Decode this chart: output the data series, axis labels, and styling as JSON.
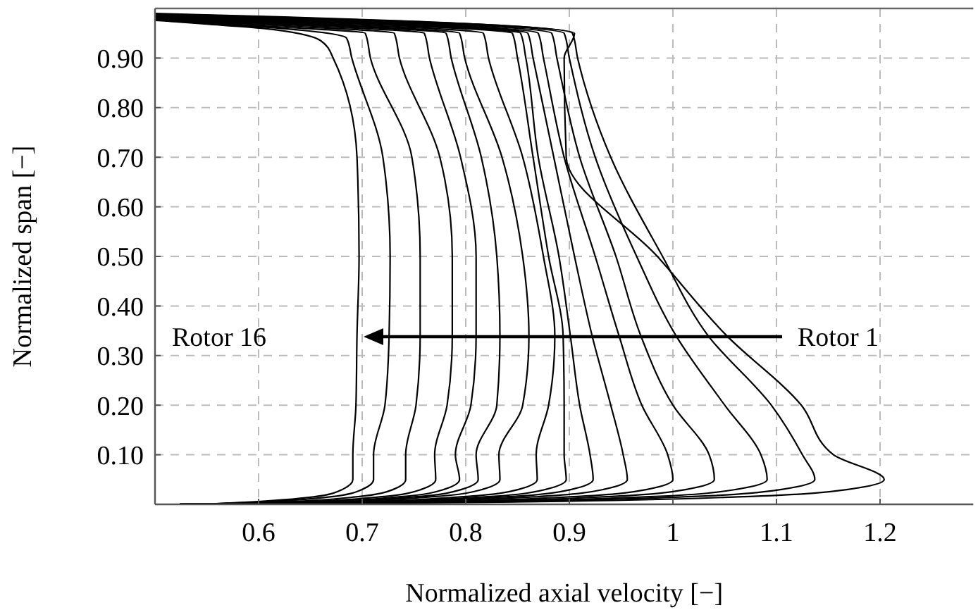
{
  "chart_data": {
    "type": "line",
    "xlabel": "Normalized axial velocity [−]",
    "ylabel": "Normalized span [−]",
    "xlim": [
      0.5,
      1.29
    ],
    "ylim": [
      0,
      1
    ],
    "xticks": [
      0.6,
      0.7,
      0.8,
      0.9,
      1,
      1.1,
      1.2
    ],
    "yticks": [
      {
        "value": 0.1,
        "label": "0.10"
      },
      {
        "value": 0.2,
        "label": "0.20"
      },
      {
        "value": 0.3,
        "label": "0.30"
      },
      {
        "value": 0.4,
        "label": "0.40"
      },
      {
        "value": 0.5,
        "label": "0.50"
      },
      {
        "value": 0.6,
        "label": "0.60"
      },
      {
        "value": 0.7,
        "label": "0.70"
      },
      {
        "value": 0.8,
        "label": "0.80"
      },
      {
        "value": 0.9,
        "label": "0.90"
      }
    ],
    "grid": true,
    "marker": "none",
    "line_style": "solid",
    "annotations": [
      "Rotor 1",
      "Rotor 16"
    ],
    "series": [
      {
        "color": "#000000",
        "x": [
          0.5,
          0.817,
          1.063,
          1.169,
          1.204,
          1.155,
          1.124,
          1.052,
          0.985,
          0.897,
          0.895,
          0.905,
          0.737,
          0.619,
          0.5
        ],
        "values": [
          0,
          0.004,
          0.015,
          0.03,
          0.05,
          0.1,
          0.2,
          0.34,
          0.5,
          0.7,
          0.9,
          0.95,
          0.975,
          0.983,
          0.99
        ]
      },
      {
        "color": "#000000",
        "x": [
          0.503,
          0.787,
          1.01,
          1.105,
          1.137,
          1.125,
          1.095,
          1.034,
          0.99,
          0.94,
          0.908,
          0.903,
          0.745,
          0.622,
          0.5
        ],
        "values": [
          0,
          0.004,
          0.015,
          0.03,
          0.05,
          0.1,
          0.2,
          0.34,
          0.5,
          0.7,
          0.9,
          0.95,
          0.974,
          0.982,
          0.989
        ]
      },
      {
        "color": "#000000",
        "x": [
          0.506,
          0.766,
          0.973,
          1.061,
          1.091,
          1.085,
          1.05,
          1.003,
          0.965,
          0.925,
          0.9,
          0.895,
          0.74,
          0.62,
          0.5
        ],
        "values": [
          0,
          0.004,
          0.015,
          0.03,
          0.05,
          0.1,
          0.2,
          0.34,
          0.5,
          0.7,
          0.9,
          0.95,
          0.973,
          0.981,
          0.988
        ]
      },
      {
        "color": "#000000",
        "x": [
          0.509,
          0.743,
          0.932,
          1.013,
          1.04,
          1.035,
          1.0,
          0.969,
          0.945,
          0.91,
          0.888,
          0.883,
          0.733,
          0.616,
          0.5
        ],
        "values": [
          0,
          0.004,
          0.015,
          0.03,
          0.05,
          0.1,
          0.2,
          0.34,
          0.5,
          0.7,
          0.9,
          0.95,
          0.972,
          0.98,
          0.987
        ]
      },
      {
        "color": "#000000",
        "x": [
          0.512,
          0.725,
          0.9,
          0.975,
          1.0,
          0.995,
          0.97,
          0.948,
          0.925,
          0.895,
          0.875,
          0.87,
          0.725,
          0.613,
          0.5
        ],
        "values": [
          0,
          0.004,
          0.015,
          0.03,
          0.05,
          0.1,
          0.2,
          0.34,
          0.5,
          0.7,
          0.9,
          0.95,
          0.971,
          0.979,
          0.986
        ]
      },
      {
        "color": "#000000",
        "x": [
          0.515,
          0.705,
          0.865,
          0.933,
          0.956,
          0.952,
          0.94,
          0.922,
          0.905,
          0.885,
          0.865,
          0.86,
          0.719,
          0.61,
          0.5
        ],
        "values": [
          0,
          0.004,
          0.015,
          0.03,
          0.05,
          0.1,
          0.2,
          0.34,
          0.5,
          0.7,
          0.9,
          0.95,
          0.97,
          0.978,
          0.985
        ]
      },
      {
        "color": "#000000",
        "x": [
          0.518,
          0.69,
          0.838,
          0.902,
          0.923,
          0.92,
          0.91,
          0.901,
          0.89,
          0.87,
          0.858,
          0.853,
          0.715,
          0.607,
          0.5
        ],
        "values": [
          0,
          0.004,
          0.015,
          0.03,
          0.05,
          0.1,
          0.2,
          0.34,
          0.5,
          0.7,
          0.9,
          0.95,
          0.969,
          0.977,
          0.984
        ]
      },
      {
        "color": "#000000",
        "x": [
          0.521,
          0.679,
          0.818,
          0.877,
          0.897,
          0.895,
          0.895,
          0.894,
          0.88,
          0.865,
          0.85,
          0.845,
          0.71,
          0.605,
          0.5
        ],
        "values": [
          0,
          0.004,
          0.015,
          0.03,
          0.05,
          0.1,
          0.2,
          0.34,
          0.5,
          0.7,
          0.9,
          0.95,
          0.968,
          0.976,
          0.983
        ]
      },
      {
        "color": "#000000",
        "x": [
          0.524,
          0.666,
          0.795,
          0.851,
          0.869,
          0.868,
          0.88,
          0.886,
          0.875,
          0.855,
          0.822,
          0.817,
          0.693,
          0.597,
          0.5
        ],
        "values": [
          0,
          0.004,
          0.015,
          0.03,
          0.05,
          0.1,
          0.2,
          0.34,
          0.5,
          0.7,
          0.9,
          0.95,
          0.967,
          0.975,
          0.982
        ]
      },
      {
        "color": "#000000",
        "x": [
          0.527,
          0.65,
          0.766,
          0.816,
          0.833,
          0.832,
          0.855,
          0.861,
          0.855,
          0.835,
          0.799,
          0.794,
          0.679,
          0.59,
          0.5
        ],
        "values": [
          0,
          0.004,
          0.015,
          0.03,
          0.05,
          0.1,
          0.2,
          0.34,
          0.5,
          0.7,
          0.9,
          0.95,
          0.966,
          0.974,
          0.981
        ]
      },
      {
        "color": "#000000",
        "x": [
          0.53,
          0.64,
          0.75,
          0.796,
          0.812,
          0.81,
          0.83,
          0.833,
          0.83,
          0.815,
          0.786,
          0.781,
          0.672,
          0.586,
          0.5
        ],
        "values": [
          0,
          0.004,
          0.015,
          0.03,
          0.05,
          0.1,
          0.2,
          0.34,
          0.5,
          0.7,
          0.9,
          0.95,
          0.965,
          0.973,
          0.98
        ]
      },
      {
        "color": "#000000",
        "x": [
          0.533,
          0.632,
          0.735,
          0.779,
          0.794,
          0.79,
          0.805,
          0.81,
          0.81,
          0.795,
          0.765,
          0.76,
          0.659,
          0.58,
          0.5
        ],
        "values": [
          0,
          0.004,
          0.015,
          0.03,
          0.05,
          0.1,
          0.2,
          0.34,
          0.5,
          0.7,
          0.9,
          0.95,
          0.964,
          0.972,
          0.979
        ]
      },
      {
        "color": "#000000",
        "x": [
          0.536,
          0.622,
          0.717,
          0.757,
          0.771,
          0.77,
          0.782,
          0.787,
          0.787,
          0.775,
          0.736,
          0.731,
          0.642,
          0.571,
          0.5
        ],
        "values": [
          0,
          0.004,
          0.015,
          0.03,
          0.05,
          0.1,
          0.2,
          0.34,
          0.5,
          0.7,
          0.9,
          0.95,
          0.963,
          0.971,
          0.978
        ]
      },
      {
        "color": "#000000",
        "x": [
          0.539,
          0.609,
          0.694,
          0.73,
          0.742,
          0.742,
          0.752,
          0.756,
          0.756,
          0.748,
          0.708,
          0.703,
          0.625,
          0.562,
          0.5
        ],
        "values": [
          0,
          0.004,
          0.015,
          0.03,
          0.05,
          0.1,
          0.2,
          0.34,
          0.5,
          0.7,
          0.9,
          0.95,
          0.962,
          0.97,
          0.977
        ]
      },
      {
        "color": "#000000",
        "x": [
          0.542,
          0.595,
          0.669,
          0.7,
          0.711,
          0.711,
          0.722,
          0.726,
          0.727,
          0.72,
          0.69,
          0.685,
          0.614,
          0.557,
          0.5
        ],
        "values": [
          0,
          0.004,
          0.015,
          0.03,
          0.05,
          0.1,
          0.2,
          0.34,
          0.5,
          0.7,
          0.9,
          0.94,
          0.961,
          0.969,
          0.976
        ]
      },
      {
        "color": "#000000",
        "x": [
          0.545,
          0.586,
          0.653,
          0.681,
          0.691,
          0.691,
          0.694,
          0.695,
          0.697,
          0.695,
          0.672,
          0.66,
          0.603,
          0.552,
          0.51
        ],
        "values": [
          0,
          0.004,
          0.015,
          0.03,
          0.05,
          0.1,
          0.2,
          0.34,
          0.5,
          0.7,
          0.9,
          0.935,
          0.96,
          0.968,
          0.975
        ]
      }
    ]
  }
}
